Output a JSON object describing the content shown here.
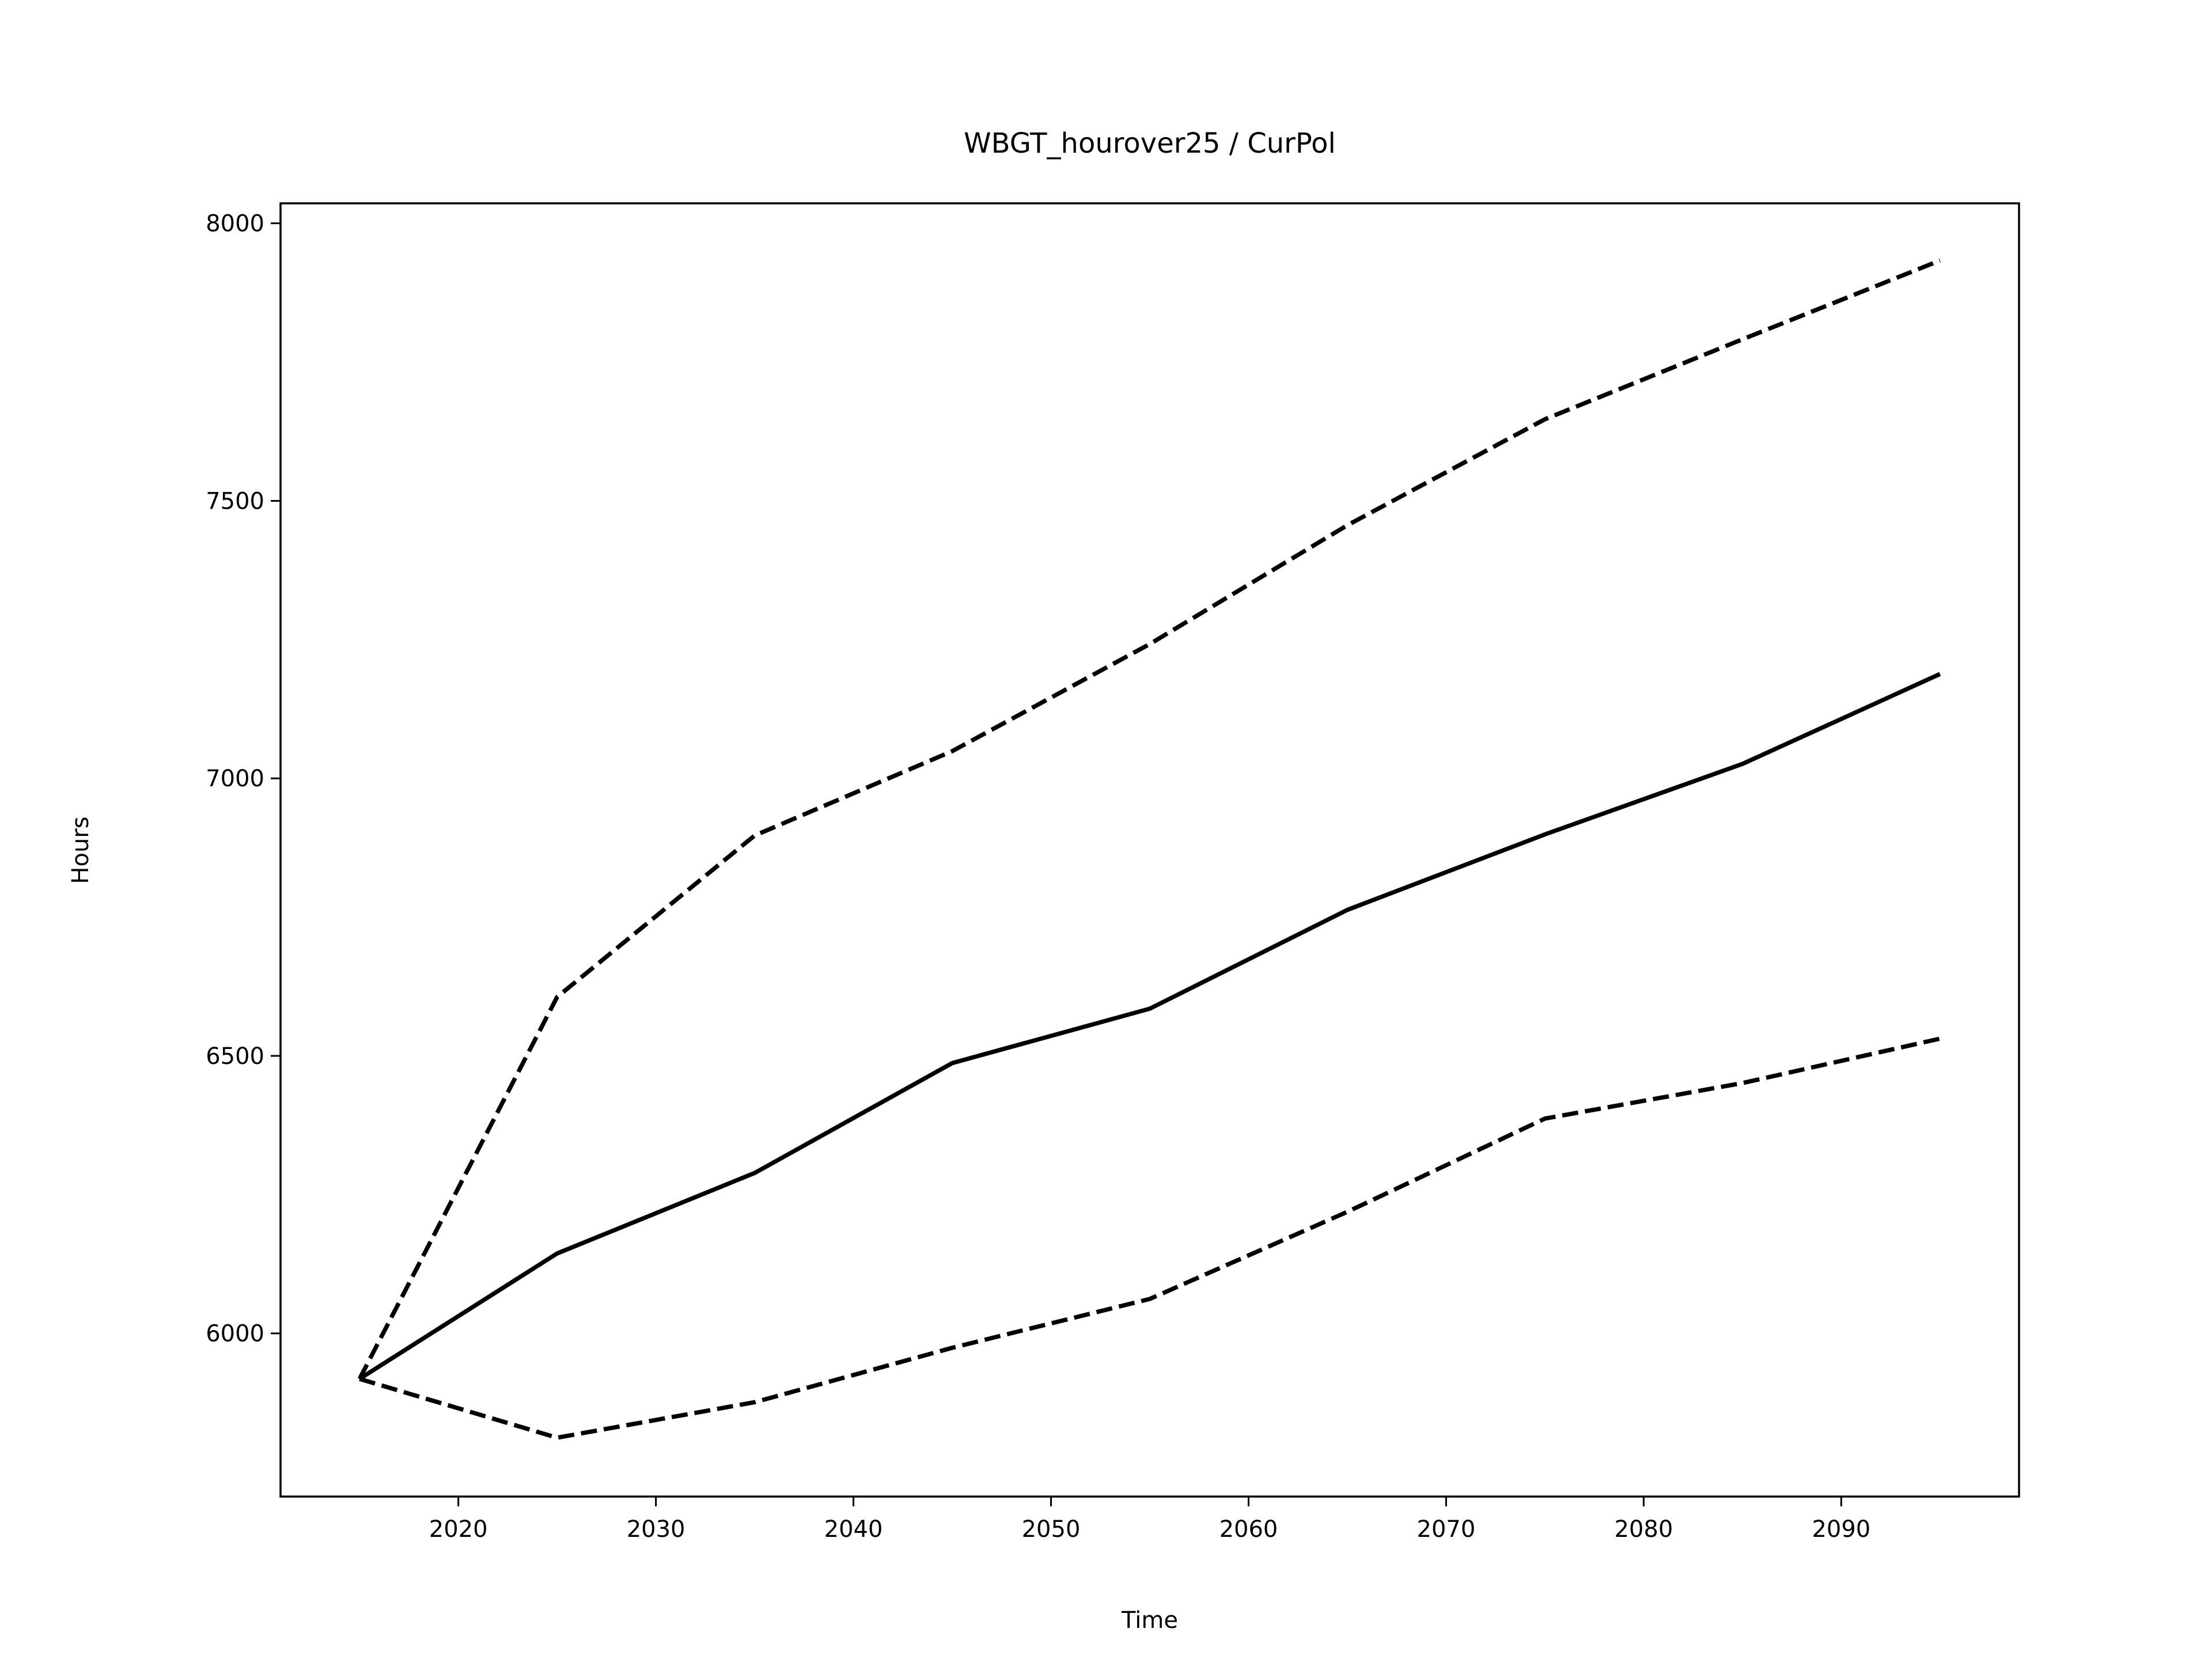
{
  "chart_data": {
    "type": "line",
    "title": "WBGT_hourover25 / CurPol",
    "x_label": "Time",
    "y_label": "Hours",
    "x": [
      2015,
      2025,
      2035,
      2045,
      2055,
      2065,
      2075,
      2085,
      2095
    ],
    "series": [
      {
        "color": "#000000",
        "linestyle": "solid",
        "values": [
          5918,
          6144,
          6289,
          6487,
          6585,
          6763,
          6899,
          7026,
          7188
        ]
      },
      {
        "color": "#000000",
        "linestyle": "dashed",
        "values": [
          5918,
          6606,
          6897,
          7049,
          7242,
          7456,
          7647,
          7791,
          7933
        ]
      },
      {
        "color": "#000000",
        "linestyle": "dashed",
        "values": [
          5918,
          5812,
          5876,
          5974,
          6062,
          6219,
          6387,
          6451,
          6531
        ]
      }
    ],
    "xlim": [
      2011,
      2099
    ],
    "ylim": [
      5706,
      8036
    ],
    "xticks": [
      2020,
      2030,
      2040,
      2050,
      2060,
      2070,
      2080,
      2090
    ],
    "yticks": [
      6000,
      6500,
      7000,
      7500,
      8000
    ],
    "grid": false
  }
}
